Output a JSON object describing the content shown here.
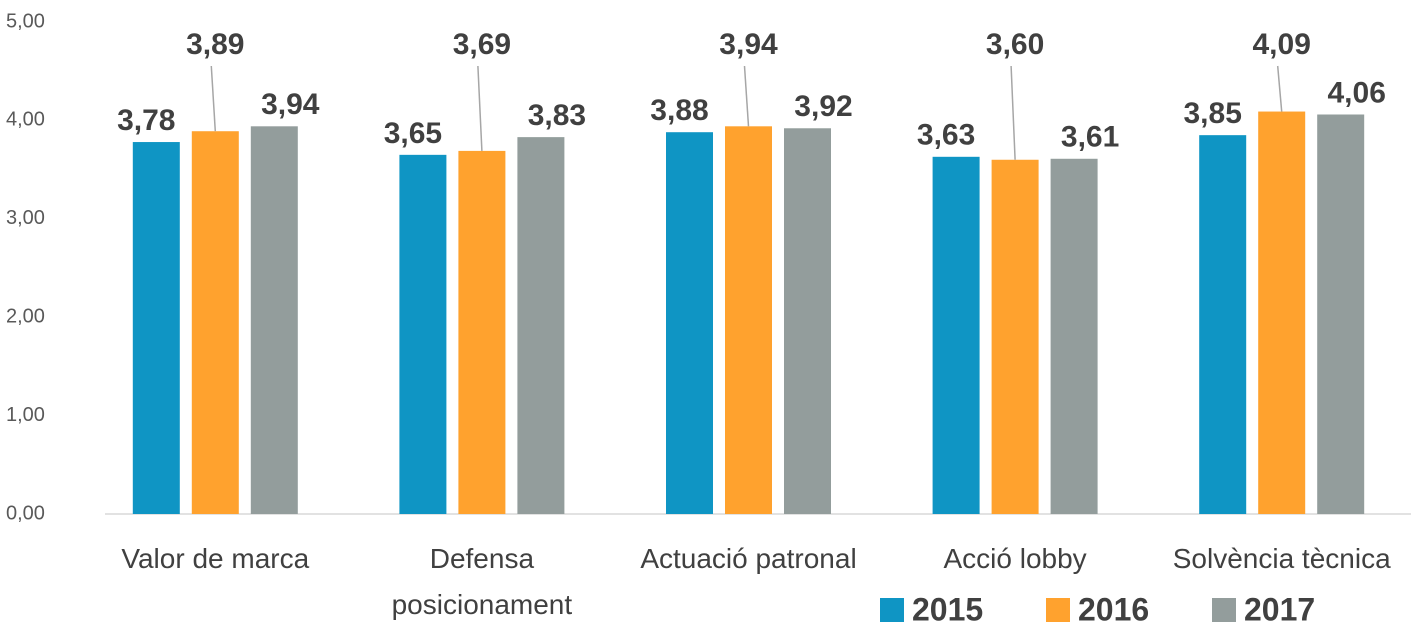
{
  "chart_data": {
    "type": "bar",
    "categories": [
      "Valor de marca",
      "Defensa posicionament",
      "Actuació patronal",
      "Acció lobby",
      "Solvència tècnica"
    ],
    "series": [
      {
        "name": "2015",
        "color": "#0f95c4",
        "values": [
          3.78,
          3.65,
          3.88,
          3.63,
          3.85
        ],
        "value_labels": [
          "3,78",
          "3,65",
          "3,88",
          "3,63",
          "3,85"
        ]
      },
      {
        "name": "2016",
        "color": "#ffa22e",
        "values": [
          3.89,
          3.69,
          3.94,
          3.6,
          4.09
        ],
        "value_labels": [
          "3,89",
          "3,69",
          "3,94",
          "3,60",
          "4,09"
        ]
      },
      {
        "name": "2017",
        "color": "#939d9c",
        "values": [
          3.94,
          3.83,
          3.92,
          3.61,
          4.06
        ],
        "value_labels": [
          "3,94",
          "3,83",
          "3,92",
          "3,61",
          "4,06"
        ]
      }
    ],
    "ylim": [
      0,
      5
    ],
    "yticks": [
      {
        "value": 0,
        "label": "0,00"
      },
      {
        "value": 1,
        "label": "1,00"
      },
      {
        "value": 2,
        "label": "2,00"
      },
      {
        "value": 3,
        "label": "3,00"
      },
      {
        "value": 4,
        "label": "4,00"
      },
      {
        "value": 5,
        "label": "5,00"
      }
    ],
    "grid": false,
    "legend": "bottom-right"
  }
}
